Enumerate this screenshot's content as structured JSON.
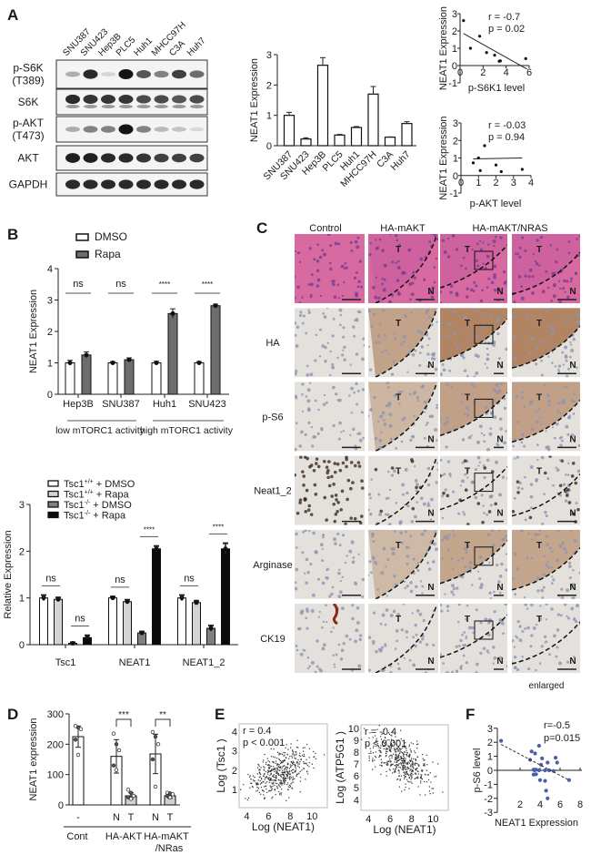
{
  "figure": {
    "panel_labels": [
      "A",
      "B",
      "C",
      "D",
      "E",
      "F"
    ]
  },
  "blot": {
    "lanes": [
      "SNU387",
      "SNU423",
      "Hep3B",
      "PLC5",
      "Huh1",
      "MHCC97H",
      "C3A",
      "Huh7"
    ],
    "rows": [
      {
        "label": [
          "p-S6K",
          "(T389)"
        ],
        "intensity": [
          0.3,
          0.9,
          0.12,
          1.0,
          0.7,
          0.5,
          0.8,
          0.6
        ]
      },
      {
        "label": [
          "S6K"
        ],
        "intensity": [
          0.9,
          0.85,
          0.85,
          0.85,
          0.75,
          0.75,
          0.7,
          0.75
        ]
      },
      {
        "label": [
          "p-AKT",
          "(T473)"
        ],
        "intensity": [
          0.3,
          0.5,
          0.5,
          1.0,
          0.5,
          0.25,
          0.2,
          0.1
        ]
      },
      {
        "label": [
          "AKT"
        ],
        "intensity": [
          0.95,
          0.95,
          0.9,
          0.9,
          0.85,
          0.8,
          0.8,
          0.8
        ]
      },
      {
        "label": [
          "GAPDH"
        ],
        "intensity": [
          0.9,
          0.9,
          0.9,
          0.9,
          0.9,
          0.9,
          0.9,
          0.9
        ]
      }
    ]
  },
  "histology": {
    "columns": [
      "Control",
      "HA-mAKT",
      "HA-mAKT/NRAS"
    ],
    "rows": [
      "",
      "HA",
      "p-S6",
      "Neat1_2",
      "Arginase",
      "CK19"
    ],
    "tumor_marker": "T",
    "normal_marker": "N",
    "enlarged_label": "enlarged"
  },
  "chart_data": [
    {
      "id": "A-bar",
      "type": "bar",
      "categories": [
        "SNU387",
        "SNU423",
        "Hep3B",
        "PLC5",
        "Huh1",
        "MHCC97H",
        "C3A",
        "Huh7"
      ],
      "values": [
        1.0,
        0.22,
        2.65,
        0.35,
        0.6,
        1.7,
        0.28,
        0.73
      ],
      "errors": [
        0.1,
        0.04,
        0.25,
        0.02,
        0.03,
        0.25,
        0.01,
        0.06
      ],
      "xlabel": "",
      "ylabel": "NEAT1 Expression",
      "ylim": [
        0,
        3
      ],
      "yticks": [
        "0",
        "1",
        "2",
        "3"
      ]
    },
    {
      "id": "A-scatter-pS6K1",
      "type": "scatter",
      "points": [
        [
          0.3,
          2.6
        ],
        [
          0.9,
          1.0
        ],
        [
          1.7,
          1.7
        ],
        [
          2.3,
          0.75
        ],
        [
          3.0,
          0.6
        ],
        [
          3.4,
          0.25
        ],
        [
          3.5,
          0.27
        ],
        [
          5.7,
          0.4
        ]
      ],
      "fit": [
        [
          0.3,
          1.85
        ],
        [
          5.8,
          -0.2
        ]
      ],
      "xlabel": "p-S6K1 level",
      "ylabel": "NEAT1 Expression",
      "xlim": [
        0,
        6
      ],
      "ylim": [
        -1,
        3
      ],
      "xticks": [
        "0",
        "2",
        "4",
        "6"
      ],
      "yticks": [
        "-1",
        "0",
        "1",
        "2",
        "3"
      ],
      "annotation": [
        "r = -0.7",
        "p = 0.02"
      ]
    },
    {
      "id": "A-scatter-pAKT",
      "type": "scatter",
      "points": [
        [
          0.7,
          0.72
        ],
        [
          1.0,
          1.0
        ],
        [
          1.1,
          0.28
        ],
        [
          1.35,
          1.7
        ],
        [
          2.0,
          0.6
        ],
        [
          2.3,
          0.22
        ],
        [
          3.5,
          0.35
        ]
      ],
      "fit": [
        [
          0.7,
          0.95
        ],
        [
          3.5,
          1.0
        ]
      ],
      "xlabel": "p-AKT level",
      "ylabel": "NEAT1 Expression",
      "xlim": [
        0,
        4
      ],
      "ylim": [
        -1,
        3
      ],
      "xticks": [
        "0",
        "1",
        "2",
        "3",
        "4"
      ],
      "yticks": [
        "-1",
        "0",
        "1",
        "2",
        "3"
      ],
      "annotation": [
        "r = -0.03",
        "p = 0.94"
      ]
    },
    {
      "id": "B-rapa",
      "type": "bar",
      "categories": [
        "Hep3B",
        "SNU387",
        "Huh1",
        "SNU423"
      ],
      "series": [
        {
          "name": "DMSO",
          "values": [
            1.0,
            1.0,
            1.0,
            1.0
          ],
          "errors": [
            0.08,
            0.04,
            0.05,
            0.04
          ],
          "color": "#ffffff"
        },
        {
          "name": "Rapa",
          "values": [
            1.25,
            1.1,
            2.57,
            2.82
          ],
          "errors": [
            0.1,
            0.06,
            0.15,
            0.05
          ],
          "color": "#6d6d6d"
        }
      ],
      "significance": [
        "ns",
        "ns",
        "****",
        "****"
      ],
      "group_labels": [
        "low mTORC1 activity",
        "high mTORC1 activity"
      ],
      "ylabel": "NEAT1 Expression",
      "ylim": [
        0,
        4
      ],
      "yticks": [
        "0",
        "1",
        "2",
        "3",
        "4"
      ],
      "legend": "top"
    },
    {
      "id": "B-tsc1",
      "type": "bar",
      "categories": [
        "Tsc1",
        "NEAT1",
        "NEAT1_2"
      ],
      "series": [
        {
          "name": {
            "base": "Tsc1",
            "sup": "+/+",
            "suffix": " + DMSO"
          },
          "values": [
            1.0,
            1.0,
            1.0
          ],
          "errors": [
            0.06,
            0.03,
            0.06
          ],
          "color": "#ffffff"
        },
        {
          "name": {
            "base": "Tsc1",
            "sup": "+/+",
            "suffix": " + Rapa"
          },
          "values": [
            0.97,
            0.92,
            0.9
          ],
          "errors": [
            0.04,
            0.04,
            0.04
          ],
          "color": "#d4d4d4"
        },
        {
          "name": {
            "base": "Tsc1",
            "sup": "-/-",
            "suffix": " + DMSO"
          },
          "values": [
            0.03,
            0.25,
            0.35
          ],
          "errors": [
            0.02,
            0.03,
            0.06
          ],
          "color": "#808080"
        },
        {
          "name": {
            "base": "Tsc1",
            "sup": "-/-",
            "suffix": "  + Rapa"
          },
          "values": [
            0.15,
            2.05,
            2.05
          ],
          "errors": [
            0.05,
            0.06,
            0.12
          ],
          "color": "#0a0a0a"
        }
      ],
      "significance": [
        [
          "ns",
          "ns"
        ],
        [
          "ns",
          "****"
        ],
        [
          "ns",
          "****"
        ]
      ],
      "ylabel": "Relative Expression",
      "ylim": [
        0,
        3
      ],
      "yticks": [
        "0",
        "1",
        "2",
        "3"
      ],
      "legend": "top-left"
    },
    {
      "id": "D",
      "type": "bar",
      "categories": [
        "-",
        "N",
        "T",
        "N",
        "T"
      ],
      "values": [
        225,
        160,
        30,
        168,
        30
      ],
      "errors": [
        35,
        55,
        10,
        65,
        8
      ],
      "points": [
        [
          260,
          255,
          250,
          215,
          165
        ],
        [
          235,
          200,
          180,
          130,
          115
        ],
        [
          50,
          40,
          30,
          25,
          20
        ],
        [
          240,
          225,
          200,
          150,
          60
        ],
        [
          40,
          38,
          35,
          30,
          25
        ]
      ],
      "group_labels": [
        [
          "Cont"
        ],
        [
          "HA-AKT"
        ],
        [
          "HA-mAKT",
          "/NRas"
        ]
      ],
      "significance": [
        "***",
        "**"
      ],
      "ylabel": "NEAT1 expression",
      "ylim": [
        0,
        300
      ],
      "yticks": [
        "0",
        "100",
        "200",
        "300"
      ]
    },
    {
      "id": "E-tsc1",
      "type": "scatter",
      "xlabel": "Log (NEAT1)",
      "ylabel": "Log (Tsc1 )",
      "xlim": [
        3.3,
        11.4
      ],
      "ylim": [
        0.05,
        4.4
      ],
      "xticks": [
        "4",
        "6",
        "8",
        "10"
      ],
      "yticks": [
        "1",
        "2",
        "3",
        "4"
      ],
      "annotation": [
        "r = 0.4",
        "p < 0.001"
      ],
      "trend": "positive"
    },
    {
      "id": "E-atp5g1",
      "type": "scatter",
      "xlabel": "Log (NEAT1)",
      "ylabel": "Log (ATP5G1 )",
      "xlim": [
        3.3,
        11.4
      ],
      "ylim": [
        3.1,
        10.3
      ],
      "xticks": [
        "4",
        "6",
        "8",
        "10"
      ],
      "yticks": [
        "4",
        "5",
        "6",
        "7",
        "8",
        "9",
        "10"
      ],
      "annotation": [
        "r = -0.4",
        "p < 0.001"
      ],
      "trend": "negative"
    },
    {
      "id": "F",
      "type": "scatter",
      "points": [
        [
          0.1,
          2.1
        ],
        [
          3.15,
          1.35
        ],
        [
          3.5,
          1.2
        ],
        [
          3.9,
          1.75
        ],
        [
          3.0,
          0.75
        ],
        [
          3.35,
          0.05
        ],
        [
          3.6,
          0.05
        ],
        [
          3.35,
          -0.3
        ],
        [
          3.6,
          -0.28
        ],
        [
          4.1,
          0.4
        ],
        [
          4.2,
          0.85
        ],
        [
          4.5,
          0.0
        ],
        [
          4.75,
          0.55
        ],
        [
          4.0,
          -0.7
        ],
        [
          4.5,
          -0.75
        ],
        [
          4.6,
          -1.45
        ],
        [
          4.75,
          -2.0
        ],
        [
          4.9,
          0.0
        ],
        [
          5.35,
          -0.05
        ],
        [
          5.55,
          0.9
        ],
        [
          5.7,
          0.55
        ],
        [
          6.9,
          -0.7
        ],
        [
          3.45,
          0.0
        ],
        [
          3.9,
          0.0
        ]
      ],
      "fit": [
        [
          0.1,
          1.85
        ],
        [
          6.9,
          -0.7
        ]
      ],
      "xlabel": "NEAT1 Expression",
      "ylabel": "p-S6 level",
      "xlim": [
        0,
        8
      ],
      "ylim": [
        -3,
        3
      ],
      "xticks": [
        "2",
        "4",
        "6",
        "8"
      ],
      "yticks": [
        "-3",
        "-2",
        "-1",
        "0",
        "1",
        "2",
        "3"
      ],
      "annotation": [
        "r=-0.5",
        "p=0.015"
      ],
      "color": "#4a5fa8"
    }
  ]
}
